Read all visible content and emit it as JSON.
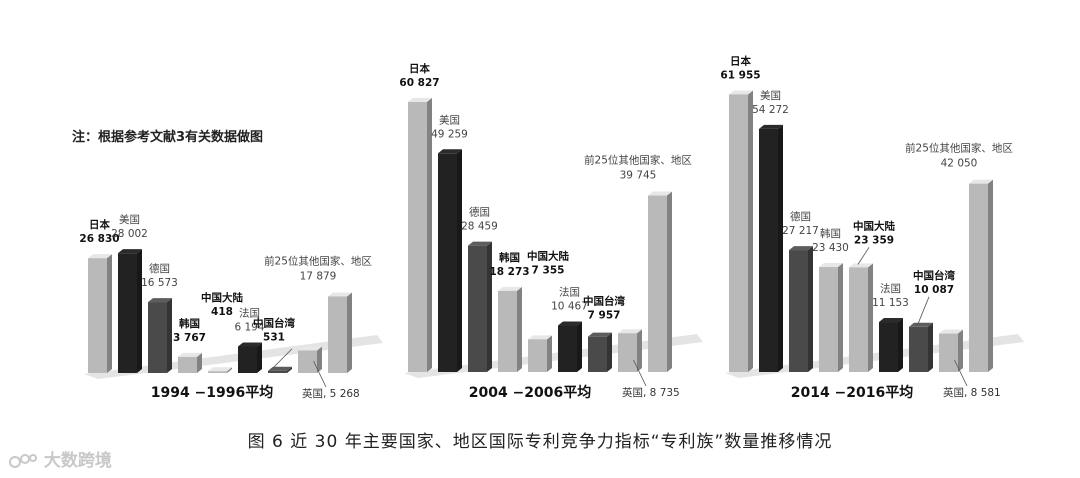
{
  "note": "注：根据参考文献3有关数据做图",
  "caption": "图 6   近 30 年主要国家、地区国际专利竞争力指标“专利族”数量推移情况",
  "watermark": "大数跨境",
  "colors": {
    "light_gray": "#b9b9b9",
    "dark": "#222222",
    "mid_dark": "#4a4a4a",
    "shadow": "#e4e4e4"
  },
  "chart_data": [
    {
      "type": "bar",
      "title": "1994 −1996平均",
      "categories": [
        "日本",
        "美国",
        "德国",
        "韩国",
        "中国大陆",
        "法国",
        "中国台湾",
        "英国",
        "前25位其他国家、地区"
      ],
      "values": [
        26830,
        28002,
        16573,
        3767,
        418,
        6194,
        531,
        5268,
        17879
      ],
      "value_labels": [
        "26 830",
        "28 002",
        "16 573",
        "3 767",
        "418",
        "6 194",
        "531",
        "英国, 5 268",
        "17 879"
      ],
      "colors": [
        "#b9b9b9",
        "#222222",
        "#4a4a4a",
        "#b9b9b9",
        "#b9b9b9",
        "#222222",
        "#4a4a4a",
        "#b9b9b9",
        "#b9b9b9"
      ],
      "bold_labels": [
        true,
        false,
        false,
        true,
        true,
        false,
        true,
        false,
        false
      ]
    },
    {
      "type": "bar",
      "title": "2004 −2006平均",
      "categories": [
        "日本",
        "美国",
        "德国",
        "韩国",
        "中国大陆",
        "法国",
        "中国台湾",
        "英国",
        "前25位其他国家、地区"
      ],
      "values": [
        60827,
        49259,
        28459,
        18273,
        7355,
        10467,
        7957,
        8735,
        39745
      ],
      "value_labels": [
        "60 827",
        "49 259",
        "28 459",
        "18 273",
        "7 355",
        "10 467",
        "7 957",
        "英国, 8 735",
        "39 745"
      ],
      "colors": [
        "#b9b9b9",
        "#222222",
        "#4a4a4a",
        "#b9b9b9",
        "#b9b9b9",
        "#222222",
        "#4a4a4a",
        "#b9b9b9",
        "#b9b9b9"
      ],
      "bold_labels": [
        true,
        false,
        false,
        true,
        true,
        false,
        true,
        false,
        false
      ]
    },
    {
      "type": "bar",
      "title": "2014 −2016平均",
      "categories": [
        "日本",
        "美国",
        "德国",
        "韩国",
        "中国大陆",
        "法国",
        "中国台湾",
        "英国",
        "前25位其他国家、地区"
      ],
      "values": [
        61955,
        54272,
        27217,
        23430,
        23359,
        11153,
        10087,
        8581,
        42050
      ],
      "value_labels": [
        "61 955",
        "54 272",
        "27 217",
        "23 430",
        "23 359",
        "11 153",
        "10 087",
        "英国, 8 581",
        "42 050"
      ],
      "colors": [
        "#b9b9b9",
        "#222222",
        "#4a4a4a",
        "#b9b9b9",
        "#b9b9b9",
        "#222222",
        "#4a4a4a",
        "#b9b9b9",
        "#b9b9b9"
      ],
      "bold_labels": [
        true,
        false,
        false,
        false,
        true,
        false,
        true,
        false,
        false
      ]
    }
  ]
}
